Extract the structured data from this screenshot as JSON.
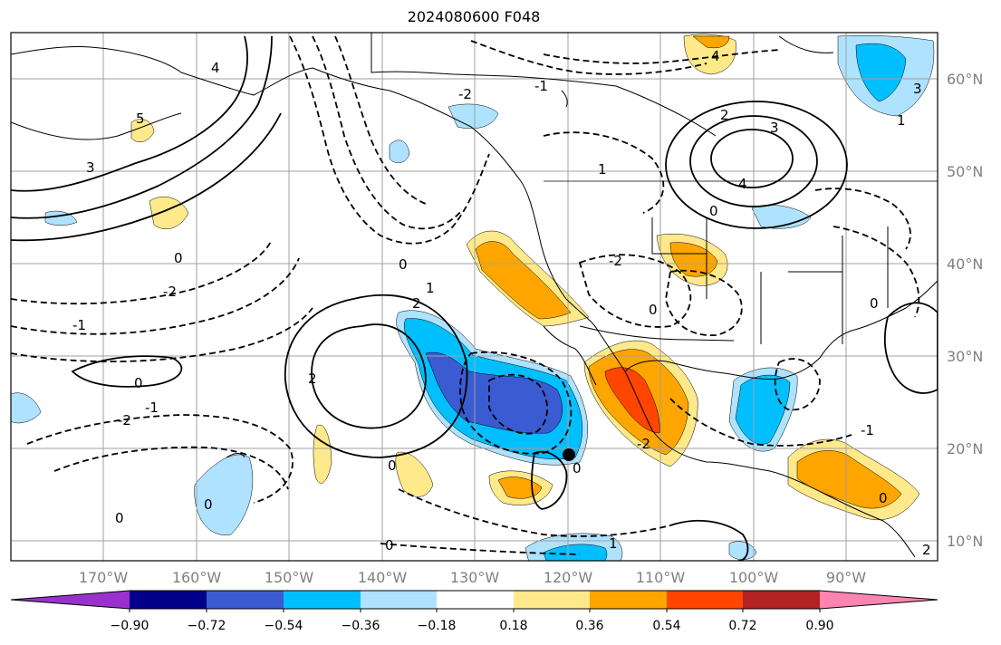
{
  "title": "2024080600 F048",
  "longitude_labels": [
    "170°W",
    "160°W",
    "150°W",
    "140°W",
    "130°W",
    "120°W",
    "110°W",
    "100°W",
    "90°W"
  ],
  "latitude_labels": [
    "60°N",
    "50°N",
    "40°N",
    "30°N",
    "20°N",
    "10°N"
  ],
  "colorbar": {
    "ticks": [
      "−0.90",
      "−0.72",
      "−0.54",
      "−0.36",
      "−0.18",
      "0.18",
      "0.36",
      "0.54",
      "0.72",
      "0.90"
    ],
    "colors": [
      "#9932cc",
      "#00008b",
      "#3a5bd1",
      "#00bfff",
      "#aee2ff",
      "#ffffff",
      "#ffe98a",
      "#ffa500",
      "#ff4500",
      "#b22222",
      "#ff85b0"
    ]
  },
  "contour_labels": [
    "-2",
    "-1",
    "0",
    "1",
    "2",
    "3",
    "4",
    "5"
  ]
}
